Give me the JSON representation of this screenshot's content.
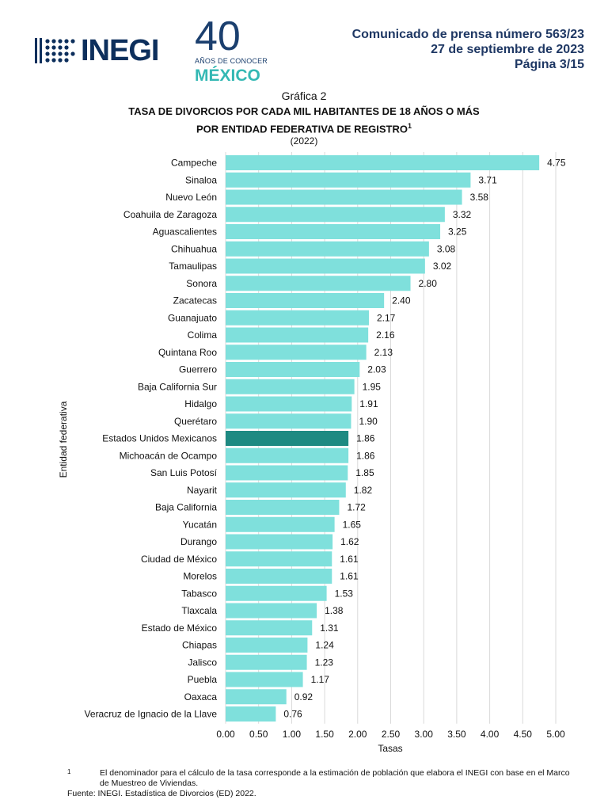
{
  "header": {
    "logo_text": "INEGI",
    "anniversary_number": "40",
    "anniversary_subtitle": "AÑOS DE CONOCER",
    "anniversary_country": "MÉXICO",
    "release": "Comunicado de prensa número 563/23",
    "date": "27 de septiembre de 2023",
    "page": "Página 3/15"
  },
  "figure": {
    "label": "Gráfica 2",
    "title_line1": "TASA DE DIVORCIOS POR CADA MIL HABITANTES DE 18 AÑOS O MÁS",
    "title_line2": "POR ENTIDAD FEDERATIVA DE REGISTRO",
    "title_footnote_ref": "1",
    "period": "(2022)"
  },
  "chart_data": {
    "type": "bar",
    "orientation": "horizontal",
    "xlabel": "Tasas",
    "ylabel": "Entidad federativa",
    "xlim": [
      0,
      5
    ],
    "xticks": [
      "0.00",
      "0.50",
      "1.00",
      "1.50",
      "2.00",
      "2.50",
      "3.00",
      "3.50",
      "4.00",
      "4.50",
      "5.00"
    ],
    "grid": "vertical",
    "bar_color": "#7fe0dc",
    "highlight_color": "#1e8a82",
    "highlight_category": "Estados Unidos Mexicanos",
    "categories": [
      "Campeche",
      "Sinaloa",
      "Nuevo León",
      "Coahuila de Zaragoza",
      "Aguascalientes",
      "Chihuahua",
      "Tamaulipas",
      "Sonora",
      "Zacatecas",
      "Guanajuato",
      "Colima",
      "Quintana Roo",
      "Guerrero",
      "Baja California Sur",
      "Hidalgo",
      "Querétaro",
      "Estados Unidos Mexicanos",
      "Michoacán de Ocampo",
      "San Luis Potosí",
      "Nayarit",
      "Baja California",
      "Yucatán",
      "Durango",
      "Ciudad de México",
      "Morelos",
      "Tabasco",
      "Tlaxcala",
      "Estado de México",
      "Chiapas",
      "Jalisco",
      "Puebla",
      "Oaxaca",
      "Veracruz de Ignacio de la Llave"
    ],
    "values": [
      4.75,
      3.71,
      3.58,
      3.32,
      3.25,
      3.08,
      3.02,
      2.8,
      2.4,
      2.17,
      2.16,
      2.13,
      2.03,
      1.95,
      1.91,
      1.9,
      1.86,
      1.86,
      1.85,
      1.82,
      1.72,
      1.65,
      1.62,
      1.61,
      1.61,
      1.53,
      1.38,
      1.31,
      1.24,
      1.23,
      1.17,
      0.92,
      0.76
    ]
  },
  "footnote": {
    "mark": "1",
    "text": "El denominador para el cálculo de la tasa corresponde a la estimación de población que elabora el INEGI con base en el Marco de Muestreo de Viviendas."
  },
  "source": "Fuente: INEGI. Estadística de Divorcios (ED) 2022."
}
